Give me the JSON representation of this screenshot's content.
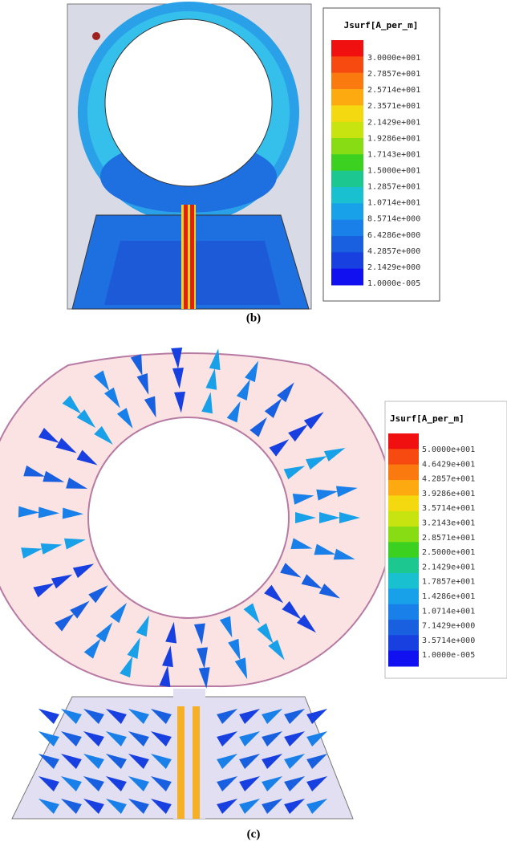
{
  "panels": [
    {
      "label": "(b)",
      "legend": {
        "title": "Jsurf[A_per_m]",
        "labels": [
          "3.0000e+001",
          "2.7857e+001",
          "2.5714e+001",
          "2.3571e+001",
          "2.1429e+001",
          "1.9286e+001",
          "1.7143e+001",
          "1.5000e+001",
          "1.2857e+001",
          "1.0714e+001",
          "8.5714e+000",
          "6.4286e+000",
          "4.2857e+000",
          "2.1429e+000",
          "1.0000e-005"
        ]
      }
    },
    {
      "label": "(c)",
      "legend": {
        "title": "Jsurf[A_per_m]",
        "labels": [
          "5.0000e+001",
          "4.6429e+001",
          "4.2857e+001",
          "3.9286e+001",
          "3.5714e+001",
          "3.2143e+001",
          "2.8571e+001",
          "2.5000e+001",
          "2.1429e+001",
          "1.7857e+001",
          "1.4286e+001",
          "1.0714e+001",
          "7.1429e+000",
          "3.5714e+000",
          "1.0000e-005"
        ]
      }
    }
  ]
}
